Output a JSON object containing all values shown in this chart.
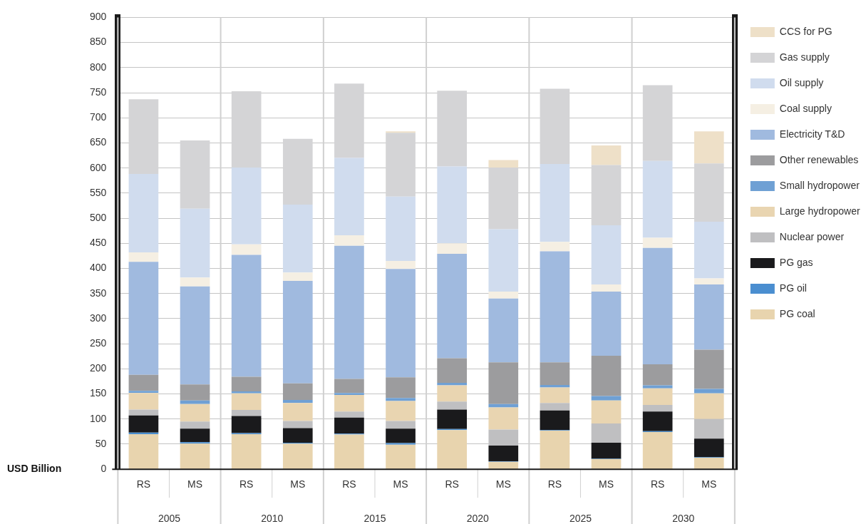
{
  "chart_data": {
    "type": "bar",
    "stacked": true,
    "ylabel": "USD Billion",
    "categories": [
      "RS",
      "MS",
      "RS",
      "MS",
      "RS",
      "MS",
      "RS",
      "MS",
      "RS",
      "MS",
      "RS",
      "MS"
    ],
    "annotations": [
      "2005",
      "2010",
      "2015",
      "2020",
      "2025",
      "2030"
    ],
    "ylim": [
      0,
      900
    ],
    "yticks": [
      0,
      50,
      100,
      150,
      200,
      250,
      300,
      350,
      400,
      450,
      500,
      550,
      600,
      650,
      700,
      750,
      800,
      850,
      900
    ],
    "grid": "y",
    "legend": "right",
    "series": [
      {
        "name": "PG coal",
        "color": "#e8d4ae",
        "values": [
          70,
          51,
          70,
          51,
          69,
          49,
          78,
          15,
          77,
          20,
          74,
          23
        ]
      },
      {
        "name": "PG oil",
        "color": "#4a8ed0",
        "values": [
          3,
          3,
          2,
          2,
          2,
          3,
          2,
          1,
          1,
          1,
          2,
          1
        ]
      },
      {
        "name": "PG gas",
        "color": "#1a1a1c",
        "values": [
          34,
          27,
          34,
          29,
          32,
          29,
          39,
          31,
          39,
          32,
          39,
          37
        ]
      },
      {
        "name": "Nuclear power",
        "color": "#bfbfc1",
        "values": [
          12,
          14,
          12,
          14,
          12,
          15,
          16,
          32,
          15,
          38,
          13,
          39
        ]
      },
      {
        "name": "Large hydropower",
        "color": "#e9d5b1",
        "values": [
          33,
          35,
          33,
          36,
          33,
          40,
          32,
          44,
          31,
          46,
          33,
          51
        ]
      },
      {
        "name": "Small hydropower",
        "color": "#6fa0d4",
        "values": [
          4,
          7,
          4,
          6,
          4,
          6,
          5,
          7,
          5,
          9,
          6,
          9
        ]
      },
      {
        "name": "Other renewables",
        "color": "#9c9c9e",
        "values": [
          32,
          32,
          29,
          33,
          28,
          41,
          49,
          83,
          45,
          80,
          42,
          78
        ]
      },
      {
        "name": "Electricity T&D",
        "color": "#a0badf",
        "values": [
          225,
          195,
          243,
          204,
          265,
          216,
          208,
          127,
          221,
          128,
          232,
          130
        ]
      },
      {
        "name": "Coal supply",
        "color": "#f5efe3",
        "values": [
          19,
          18,
          21,
          17,
          21,
          16,
          21,
          14,
          19,
          14,
          20,
          12
        ]
      },
      {
        "name": "Oil supply",
        "color": "#d0dcee",
        "values": [
          156,
          137,
          153,
          135,
          154,
          128,
          153,
          124,
          155,
          118,
          153,
          113
        ]
      },
      {
        "name": "Gas supply",
        "color": "#d4d4d6",
        "values": [
          149,
          136,
          152,
          131,
          148,
          127,
          151,
          123,
          150,
          120,
          151,
          116
        ]
      },
      {
        "name": "CCS for PG",
        "color": "#eee0c8",
        "values": [
          0,
          0,
          0,
          0,
          0,
          3,
          0,
          15,
          0,
          39,
          0,
          64
        ]
      }
    ]
  }
}
